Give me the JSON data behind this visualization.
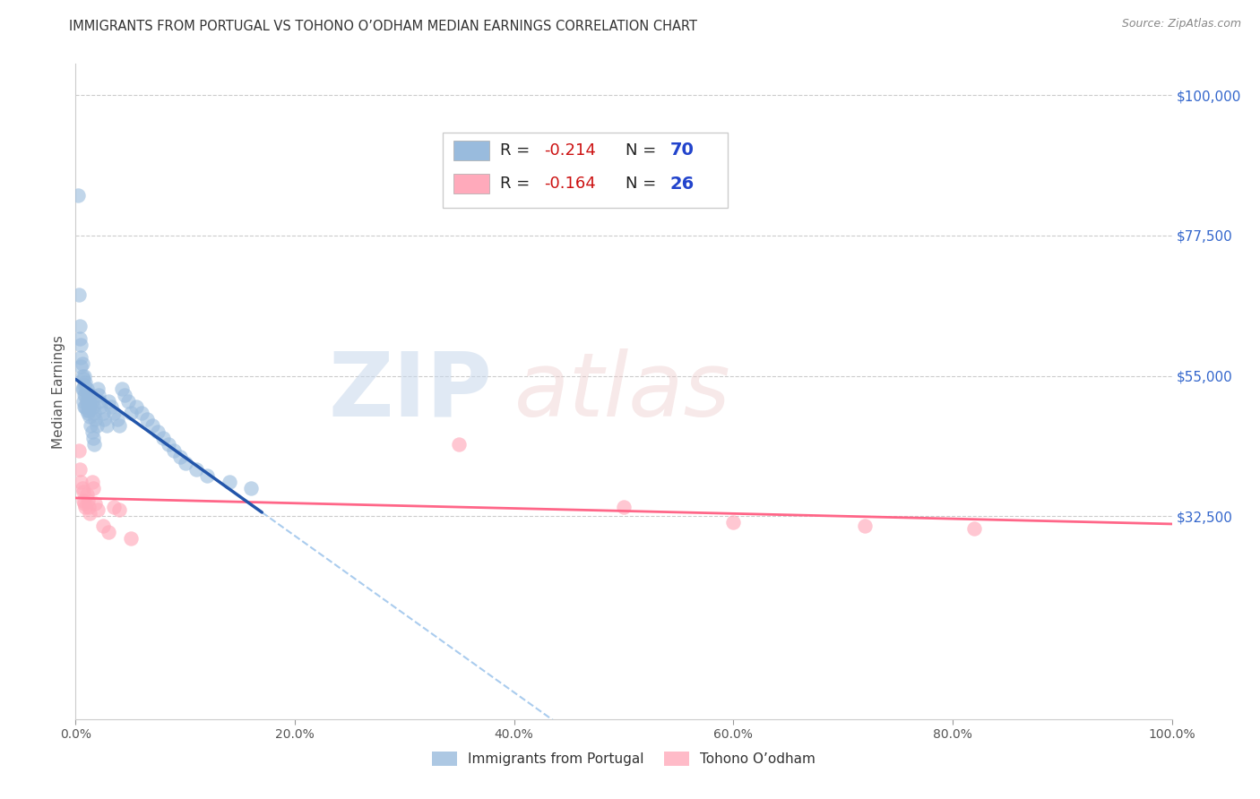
{
  "title": "IMMIGRANTS FROM PORTUGAL VS TOHONO O’ODHAM MEDIAN EARNINGS CORRELATION CHART",
  "source": "Source: ZipAtlas.com",
  "ylabel": "Median Earnings",
  "xlim": [
    0,
    1.0
  ],
  "ylim": [
    0,
    105000
  ],
  "ytick_labels": [
    "$32,500",
    "$55,000",
    "$77,500",
    "$100,000"
  ],
  "ytick_values": [
    32500,
    55000,
    77500,
    100000
  ],
  "legend_r1": "-0.214",
  "legend_n1": "70",
  "legend_r2": "-0.164",
  "legend_n2": "26",
  "legend1_label": "Immigrants from Portugal",
  "legend2_label": "Tohono O’odham",
  "color_blue": "#99BBDD",
  "color_pink": "#FFAABB",
  "color_blue_line": "#2255AA",
  "color_pink_line": "#FF6688",
  "color_gray_dash": "#AACCEE",
  "blue_scatter_x": [
    0.002,
    0.003,
    0.004,
    0.004,
    0.005,
    0.005,
    0.005,
    0.006,
    0.006,
    0.006,
    0.007,
    0.007,
    0.007,
    0.008,
    0.008,
    0.008,
    0.008,
    0.009,
    0.009,
    0.009,
    0.01,
    0.01,
    0.01,
    0.011,
    0.011,
    0.011,
    0.012,
    0.012,
    0.013,
    0.013,
    0.014,
    0.014,
    0.015,
    0.015,
    0.016,
    0.016,
    0.017,
    0.017,
    0.018,
    0.019,
    0.02,
    0.021,
    0.022,
    0.023,
    0.025,
    0.026,
    0.028,
    0.03,
    0.032,
    0.035,
    0.038,
    0.04,
    0.042,
    0.045,
    0.048,
    0.05,
    0.055,
    0.06,
    0.065,
    0.07,
    0.075,
    0.08,
    0.085,
    0.09,
    0.095,
    0.1,
    0.11,
    0.12,
    0.14,
    0.16
  ],
  "blue_scatter_y": [
    84000,
    68000,
    63000,
    61000,
    60000,
    58000,
    56500,
    57000,
    55000,
    53000,
    54500,
    53000,
    51000,
    55000,
    53500,
    52000,
    50000,
    54000,
    52000,
    50000,
    53000,
    51000,
    49500,
    52000,
    50500,
    49000,
    51000,
    49500,
    50000,
    48500,
    52000,
    47000,
    51000,
    46000,
    50000,
    45000,
    49000,
    44000,
    48000,
    47000,
    53000,
    52000,
    51000,
    50000,
    49000,
    48000,
    47000,
    51000,
    50000,
    49000,
    48000,
    47000,
    53000,
    52000,
    51000,
    49000,
    50000,
    49000,
    48000,
    47000,
    46000,
    45000,
    44000,
    43000,
    42000,
    41000,
    40000,
    39000,
    38000,
    37000
  ],
  "pink_scatter_x": [
    0.003,
    0.004,
    0.005,
    0.006,
    0.007,
    0.007,
    0.008,
    0.009,
    0.01,
    0.011,
    0.012,
    0.013,
    0.015,
    0.016,
    0.018,
    0.02,
    0.025,
    0.03,
    0.035,
    0.04,
    0.05,
    0.35,
    0.5,
    0.6,
    0.72,
    0.82
  ],
  "pink_scatter_y": [
    43000,
    40000,
    38000,
    37000,
    36500,
    35000,
    34500,
    34000,
    36000,
    35000,
    34000,
    33000,
    38000,
    37000,
    34500,
    33500,
    31000,
    30000,
    34000,
    33500,
    29000,
    44000,
    34000,
    31500,
    31000,
    30500
  ]
}
